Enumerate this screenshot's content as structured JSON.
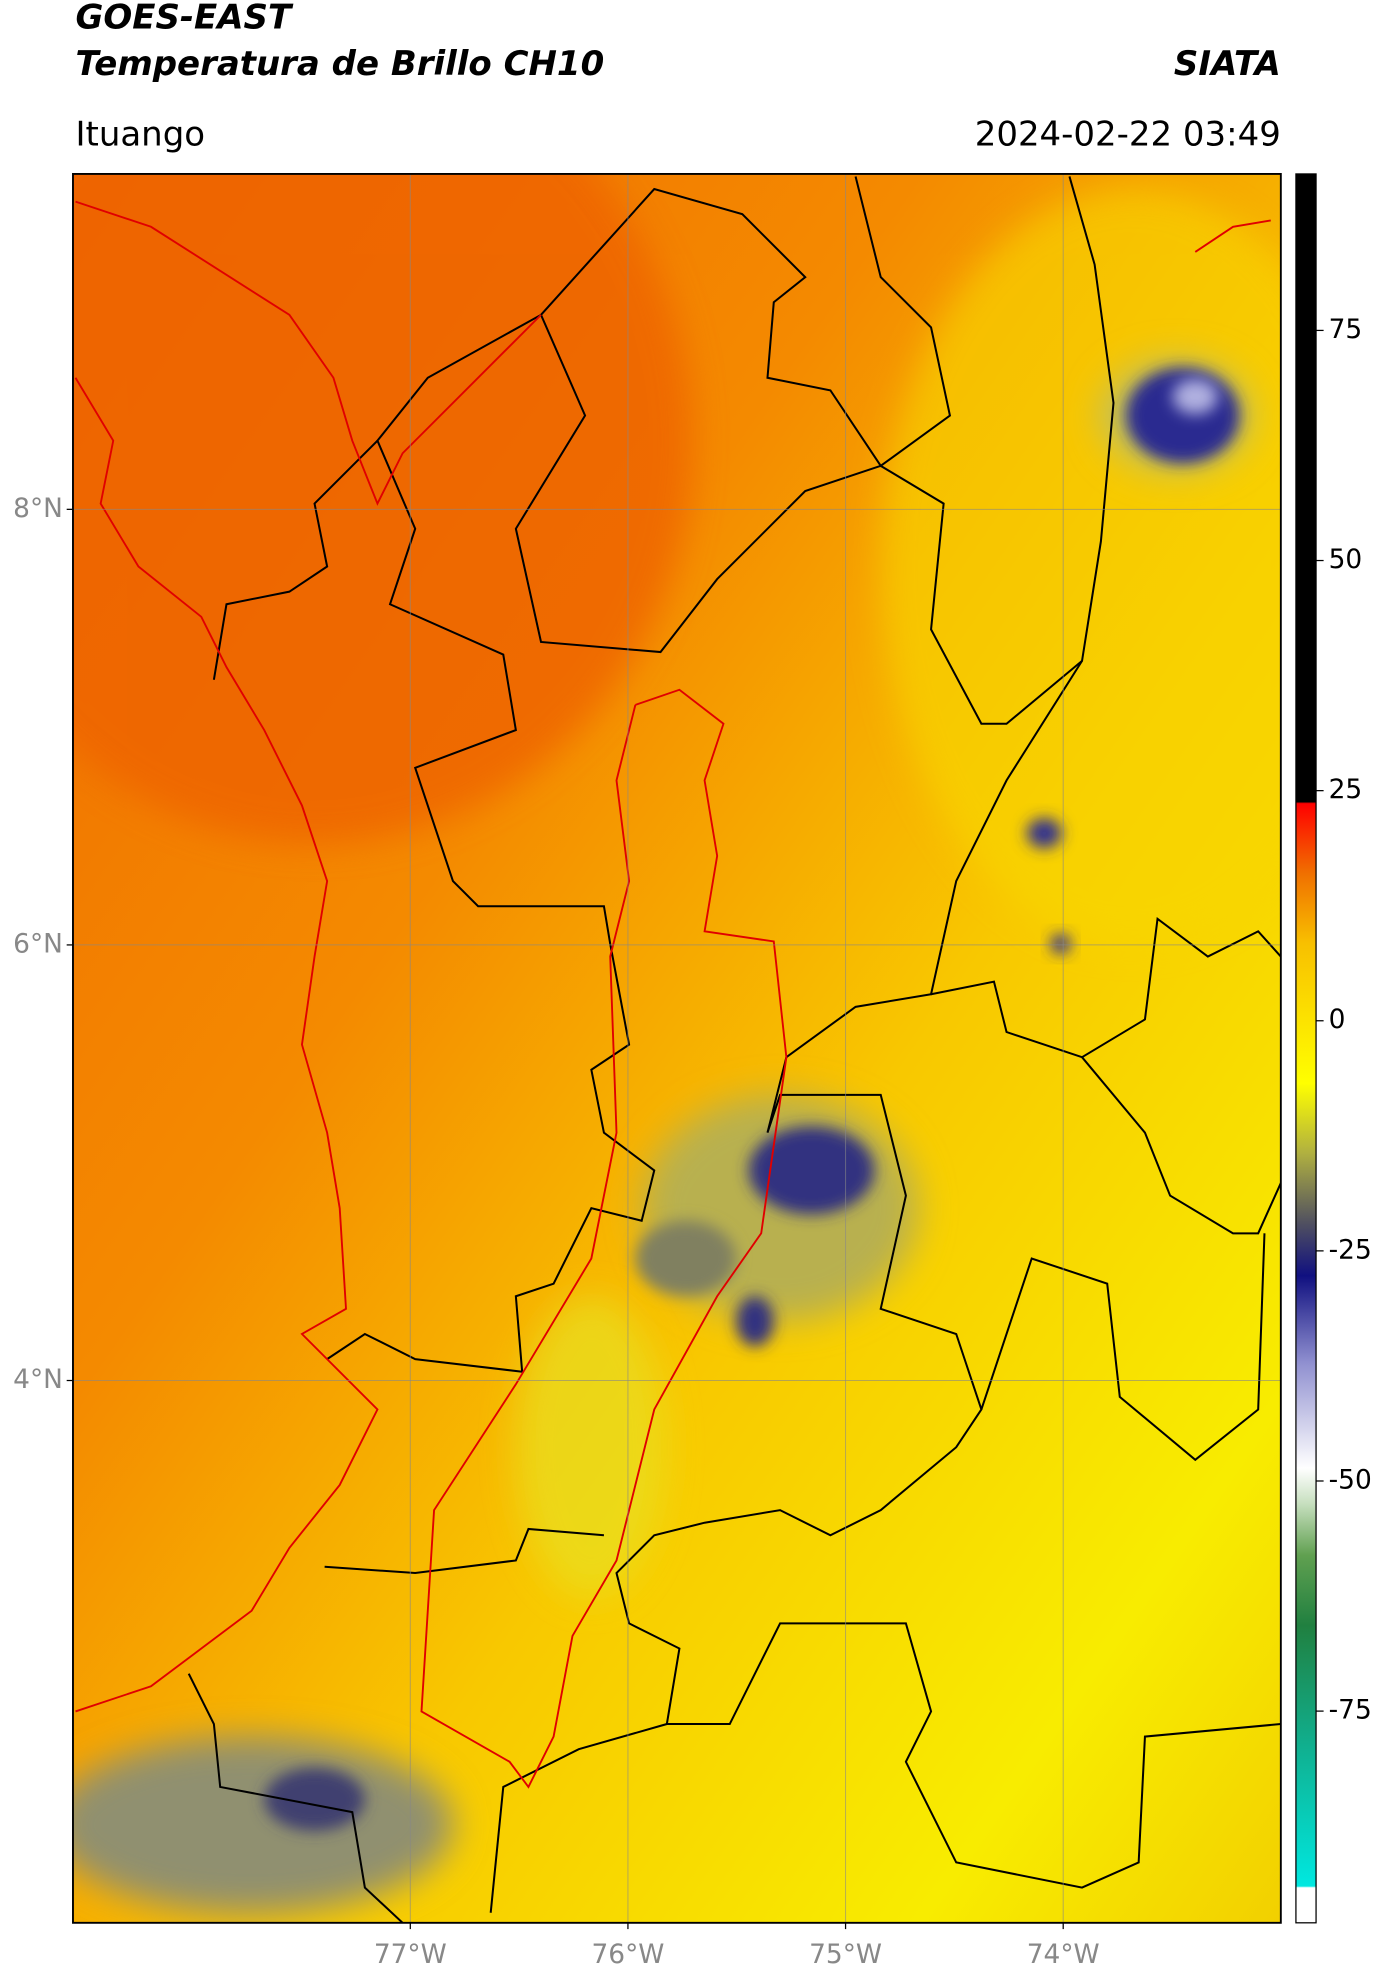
{
  "header": {
    "title": "GOES-EAST",
    "subtitle": "Temperatura de Brillo CH10",
    "source": "SIATA",
    "location": "Ituango",
    "datetime": "2024-02-22 03:49"
  },
  "map": {
    "lon_range": [
      -78.55,
      -73.0
    ],
    "lat_range": [
      1.51,
      9.54
    ],
    "lon_ticks": [
      {
        "value": -77,
        "label": "77°W"
      },
      {
        "value": -76,
        "label": "76°W"
      },
      {
        "value": -75,
        "label": "75°W"
      },
      {
        "value": -74,
        "label": "74°W"
      }
    ],
    "lat_ticks": [
      {
        "value": 8,
        "label": "8°N"
      },
      {
        "value": 6,
        "label": "6°N"
      },
      {
        "value": 4,
        "label": "4°N"
      }
    ],
    "grid": true
  },
  "colorbar": {
    "range": [
      -98,
      92
    ],
    "ticks": [
      75,
      50,
      25,
      0,
      -25,
      -50,
      -75
    ]
  }
}
